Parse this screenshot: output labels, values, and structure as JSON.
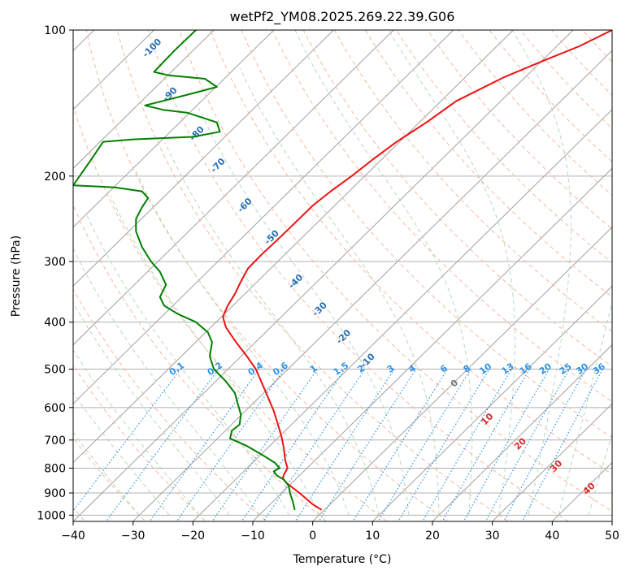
{
  "chart_data": {
    "type": "line",
    "title": "wetPf2_YM08.2025.269.22.39.G06",
    "xlabel": "Temperature (°C)",
    "ylabel": "Pressure (hPa)",
    "xlim": [
      -40,
      50
    ],
    "ylim": [
      1030,
      100
    ],
    "y_scale": "log",
    "grid": true,
    "x_ticks": [
      -40,
      -30,
      -20,
      -10,
      0,
      10,
      20,
      30,
      40,
      50
    ],
    "x_tick_labels": [
      "−40",
      "−30",
      "−20",
      "−10",
      "0",
      "10",
      "20",
      "30",
      "40",
      "50"
    ],
    "y_ticks": [
      100,
      200,
      300,
      400,
      500,
      600,
      700,
      800,
      900,
      1000
    ],
    "y_tick_labels": [
      "100",
      "200",
      "300",
      "400",
      "500",
      "600",
      "700",
      "800",
      "900",
      "1000"
    ],
    "isotherm_labels": [
      {
        "text": "-100",
        "p": 110,
        "t": -26.5
      },
      {
        "text": "-90",
        "p": 137,
        "t": -23.5
      },
      {
        "text": "-80",
        "p": 165,
        "t": -19.0
      },
      {
        "text": "-70",
        "p": 192,
        "t": -15.5
      },
      {
        "text": "-60",
        "p": 232,
        "t": -11.0
      },
      {
        "text": "-50",
        "p": 270,
        "t": -6.5
      },
      {
        "text": "-40",
        "p": 333,
        "t": -2.5
      },
      {
        "text": "-30",
        "p": 380,
        "t": 1.5
      },
      {
        "text": "-20",
        "p": 433,
        "t": 5.5
      },
      {
        "text": "-10",
        "p": 485,
        "t": 9.5
      }
    ],
    "mixing_ratio_labels": [
      "0.1",
      "0.2",
      "0.4",
      "0.6",
      "1",
      "1.5",
      "2",
      "3",
      "4",
      "6",
      "8",
      "10",
      "13",
      "16",
      "20",
      "25",
      "30",
      "36"
    ],
    "moist_adiabat_labels": [
      {
        "text": "0",
        "t": 24.0,
        "p": 540,
        "color": "#777777"
      },
      {
        "text": "10",
        "t": 29.5,
        "p": 640,
        "color": "#d62728"
      },
      {
        "text": "20",
        "t": 35.0,
        "p": 720,
        "color": "#d62728"
      },
      {
        "text": "30",
        "t": 41.0,
        "p": 800,
        "color": "#d62728"
      },
      {
        "text": "40",
        "t": 46.5,
        "p": 890,
        "color": "#d62728"
      }
    ],
    "series": [
      {
        "color": "#ee1111",
        "points": [
          {
            "p": 975,
            "t": 1.5
          },
          {
            "p": 950,
            "t": 0.0
          },
          {
            "p": 900,
            "t": -2.2
          },
          {
            "p": 860,
            "t": -4.3
          },
          {
            "p": 840,
            "t": -5.0
          },
          {
            "p": 825,
            "t": -4.8
          },
          {
            "p": 800,
            "t": -4.2
          },
          {
            "p": 770,
            "t": -4.6
          },
          {
            "p": 730,
            "t": -4.8
          },
          {
            "p": 690,
            "t": -5.2
          },
          {
            "p": 650,
            "t": -5.8
          },
          {
            "p": 610,
            "t": -6.5
          },
          {
            "p": 570,
            "t": -7.5
          },
          {
            "p": 530,
            "t": -8.6
          },
          {
            "p": 500,
            "t": -9.5
          },
          {
            "p": 470,
            "t": -11.0
          },
          {
            "p": 440,
            "t": -12.8
          },
          {
            "p": 410,
            "t": -14.5
          },
          {
            "p": 390,
            "t": -15.0
          },
          {
            "p": 370,
            "t": -14.2
          },
          {
            "p": 350,
            "t": -13.0
          },
          {
            "p": 330,
            "t": -12.0
          },
          {
            "p": 310,
            "t": -10.8
          },
          {
            "p": 290,
            "t": -8.5
          },
          {
            "p": 270,
            "t": -5.8
          },
          {
            "p": 250,
            "t": -3.0
          },
          {
            "p": 230,
            "t": 0.0
          },
          {
            "p": 215,
            "t": 3.0
          },
          {
            "p": 200,
            "t": 6.5
          },
          {
            "p": 185,
            "t": 10.0
          },
          {
            "p": 170,
            "t": 14.0
          },
          {
            "p": 155,
            "t": 19.0
          },
          {
            "p": 140,
            "t": 24.0
          },
          {
            "p": 125,
            "t": 32.0
          },
          {
            "p": 115,
            "t": 39.0
          },
          {
            "p": 108,
            "t": 44.5
          },
          {
            "p": 100,
            "t": 50.0
          }
        ]
      },
      {
        "color": "#008000",
        "points": [
          {
            "p": 975,
            "t": -3.0
          },
          {
            "p": 940,
            "t": -3.3
          },
          {
            "p": 900,
            "t": -3.8
          },
          {
            "p": 870,
            "t": -4.0
          },
          {
            "p": 845,
            "t": -4.8
          },
          {
            "p": 828,
            "t": -6.0
          },
          {
            "p": 812,
            "t": -6.5
          },
          {
            "p": 800,
            "t": -5.5
          },
          {
            "p": 780,
            "t": -6.3
          },
          {
            "p": 750,
            "t": -8.5
          },
          {
            "p": 720,
            "t": -11.0
          },
          {
            "p": 695,
            "t": -13.8
          },
          {
            "p": 670,
            "t": -13.5
          },
          {
            "p": 650,
            "t": -12.2
          },
          {
            "p": 620,
            "t": -12.0
          },
          {
            "p": 590,
            "t": -12.5
          },
          {
            "p": 560,
            "t": -13.0
          },
          {
            "p": 530,
            "t": -14.5
          },
          {
            "p": 500,
            "t": -16.5
          },
          {
            "p": 470,
            "t": -17.2
          },
          {
            "p": 440,
            "t": -16.8
          },
          {
            "p": 420,
            "t": -17.5
          },
          {
            "p": 400,
            "t": -19.5
          },
          {
            "p": 385,
            "t": -22.5
          },
          {
            "p": 370,
            "t": -24.8
          },
          {
            "p": 355,
            "t": -25.5
          },
          {
            "p": 335,
            "t": -24.5
          },
          {
            "p": 315,
            "t": -25.5
          },
          {
            "p": 300,
            "t": -27.0
          },
          {
            "p": 280,
            "t": -28.5
          },
          {
            "p": 260,
            "t": -29.5
          },
          {
            "p": 245,
            "t": -29.5
          },
          {
            "p": 232,
            "t": -28.5
          },
          {
            "p": 222,
            "t": -27.5
          },
          {
            "p": 215,
            "t": -28.5
          },
          {
            "p": 211,
            "t": -33.0
          },
          {
            "p": 209,
            "t": -40.0
          },
          {
            "p": 185,
            "t": -37.0
          },
          {
            "p": 170,
            "t": -35.0
          },
          {
            "p": 168,
            "t": -30.0
          },
          {
            "p": 166,
            "t": -20.0
          },
          {
            "p": 162,
            "t": -15.5
          },
          {
            "p": 155,
            "t": -16.0
          },
          {
            "p": 148,
            "t": -21.0
          },
          {
            "p": 146,
            "t": -25.0
          },
          {
            "p": 143,
            "t": -28.0
          },
          {
            "p": 140,
            "t": -25.0
          },
          {
            "p": 135,
            "t": -20.0
          },
          {
            "p": 131,
            "t": -16.0
          },
          {
            "p": 126,
            "t": -18.0
          },
          {
            "p": 124,
            "t": -24.0
          },
          {
            "p": 122,
            "t": -26.5
          },
          {
            "p": 110,
            "t": -23.0
          },
          {
            "p": 100,
            "t": -19.5
          }
        ]
      }
    ]
  }
}
